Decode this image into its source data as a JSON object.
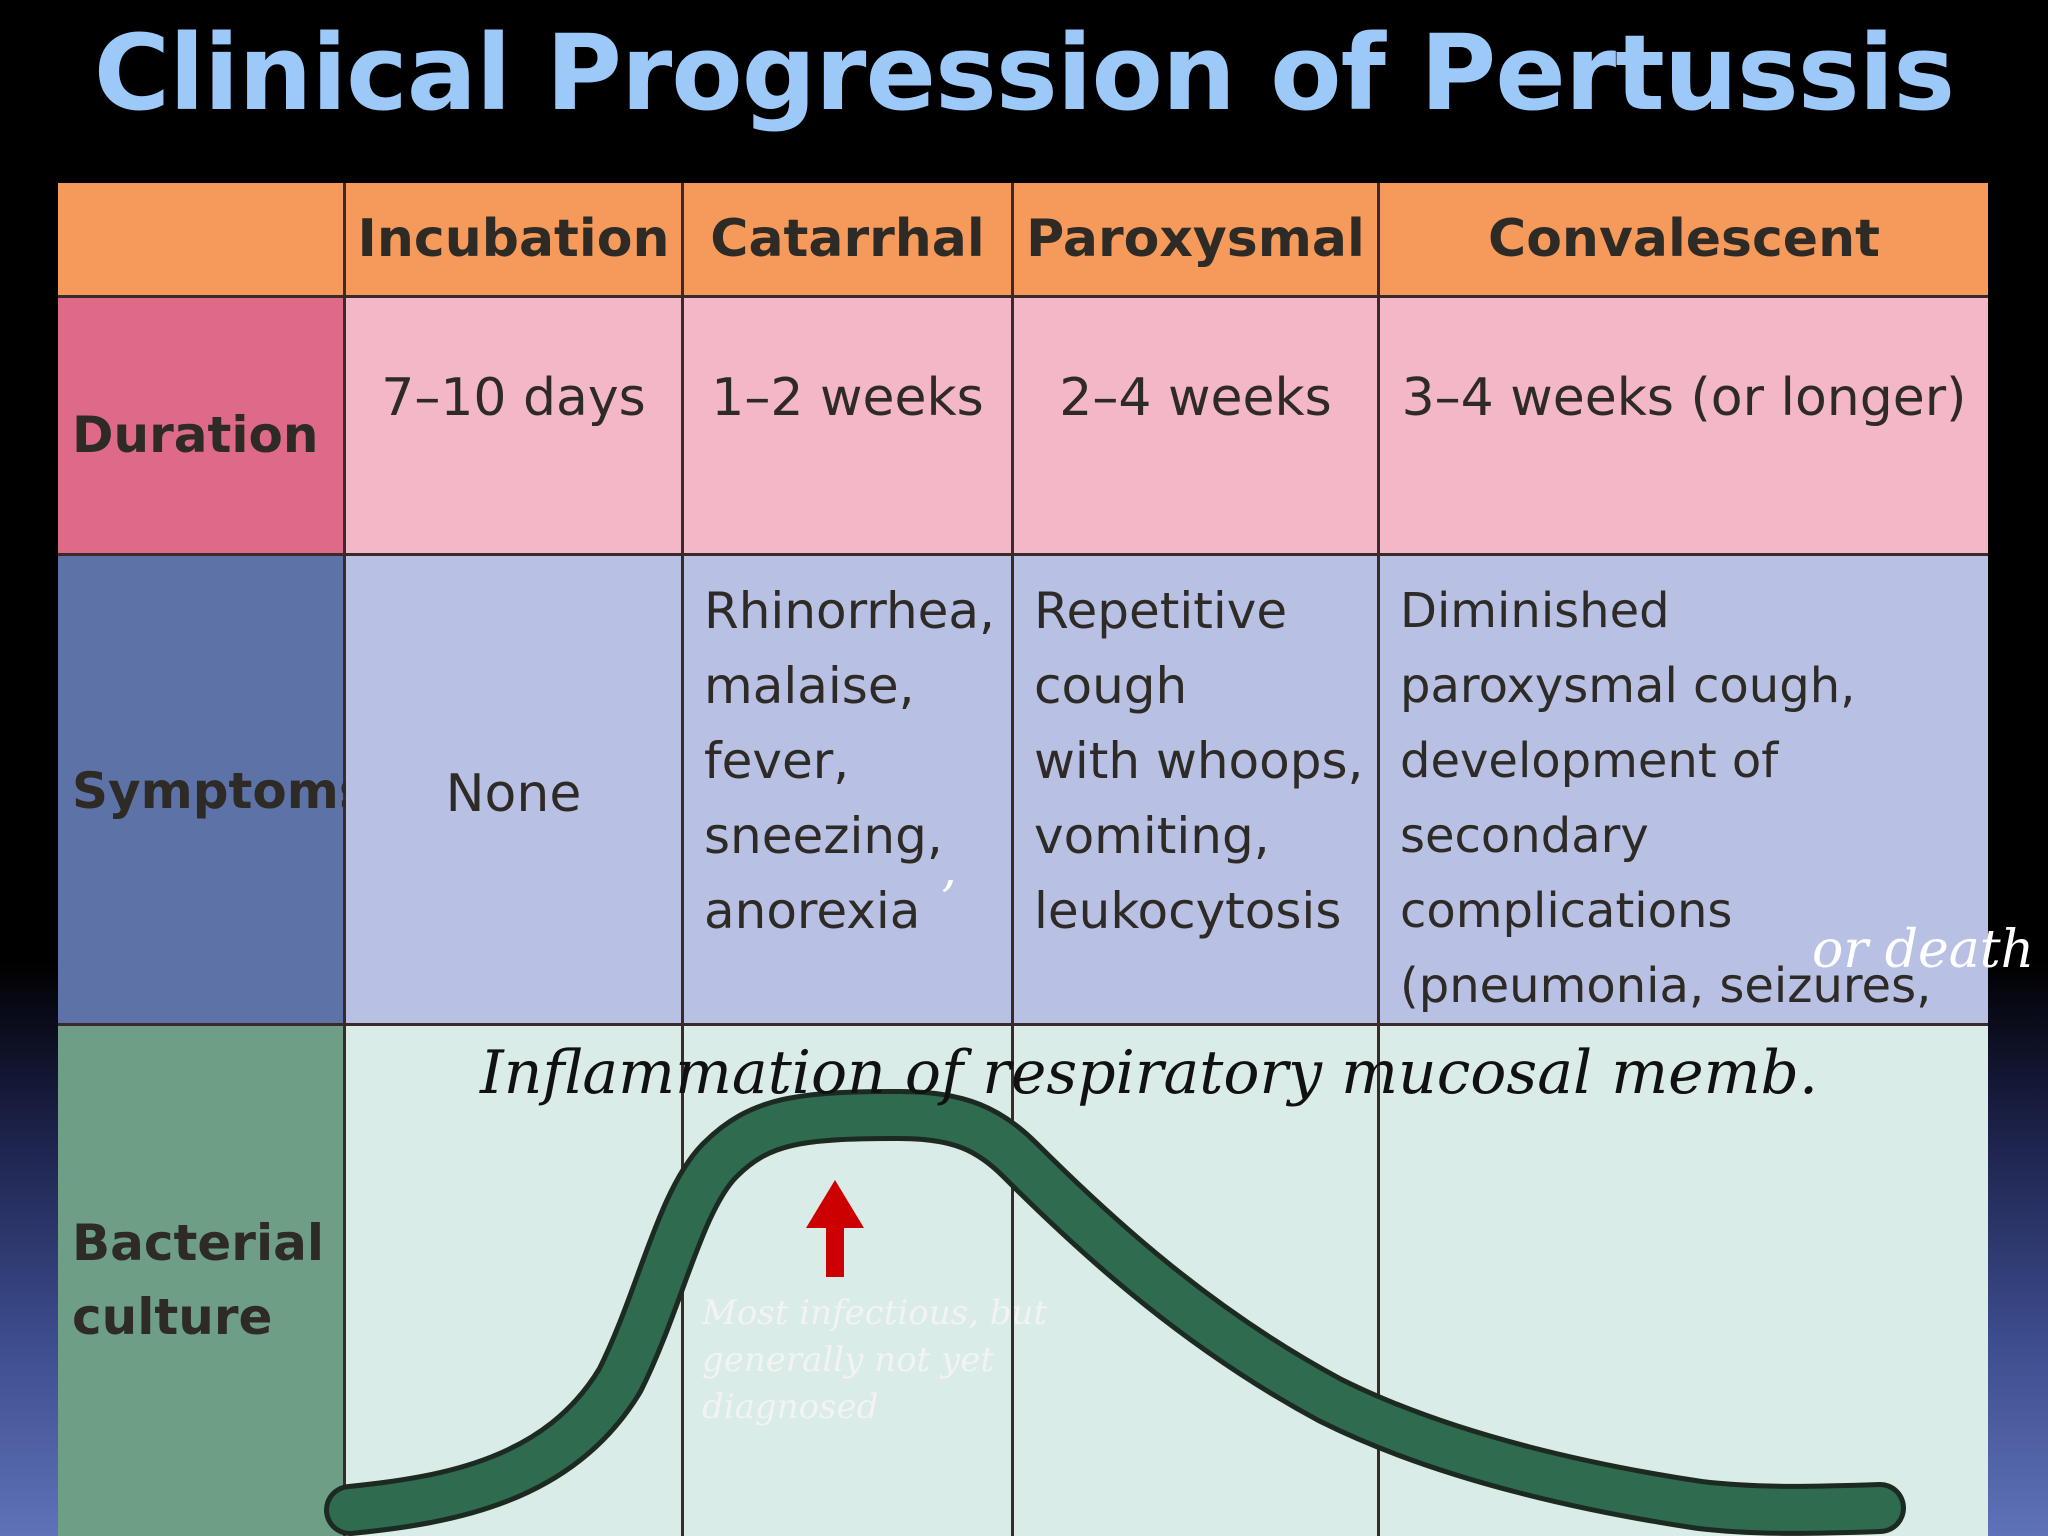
{
  "title": "Clinical Progression of Pertussis",
  "stages": [
    "Incubation",
    "Catarrhal",
    "Paroxysmal",
    "Convalescent"
  ],
  "rows": {
    "duration": {
      "label": "Duration",
      "values": [
        "7–10 days",
        "1–2 weeks",
        "2–4 weeks",
        "3–4 weeks (or longer)"
      ]
    },
    "symptoms": {
      "label": "Symptoms",
      "values": [
        "None",
        "Rhinorrhea,\nmalaise,\nfever,\nsneezing,\nanorexia",
        "Repetitive\ncough\nwith whoops,\nvomiting,\nleukocytosis",
        "Diminished\nparoxysmal cough,\ndevelopment of\nsecondary complications\n(pneumonia, seizures,\nencephalopathy)"
      ]
    },
    "bacterial_culture": {
      "label": "Bacterial\nculture"
    }
  },
  "annotations": {
    "or_death": "or death",
    "inflammation": "Inflammation of respiratory mucosal memb.",
    "most_infectious": "Most infectious, but\ngenerally not yet\ndiagnosed",
    "apostrophe": "’"
  },
  "colors": {
    "title": "#9cc9f7",
    "header": "#f59a5a",
    "duration": "#f4b7c8",
    "symptoms": "#b8c0e4",
    "culture": "#d9ece8",
    "curve": "#2f6b4e",
    "arrow": "#cc0000"
  }
}
